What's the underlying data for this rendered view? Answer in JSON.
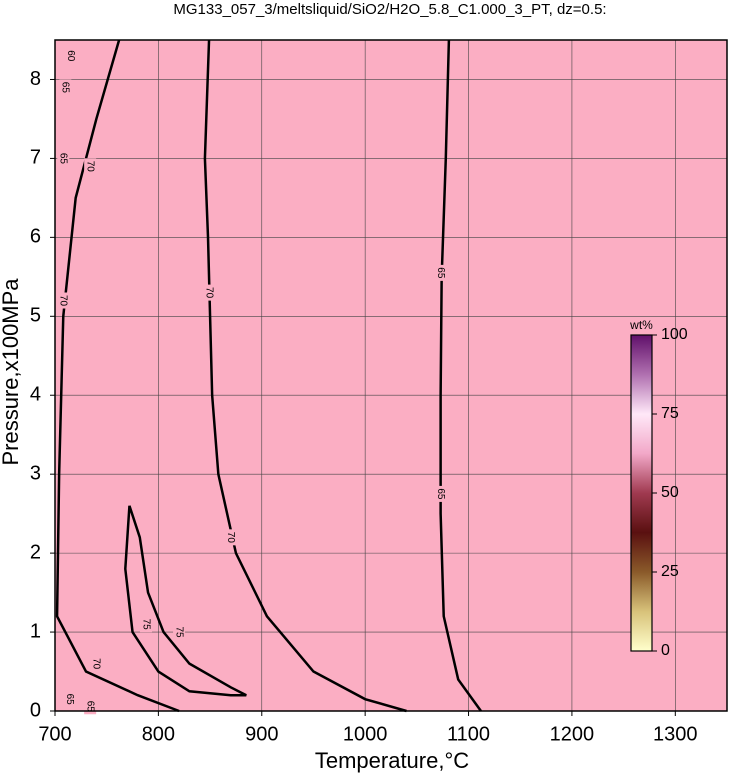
{
  "chart_data": {
    "type": "contour",
    "title": "MG133_057_3/meltsliquid/SiO2/H2O_5.8_C1.000_3_PT, dz=0.5:",
    "x_label": "Temperature,°C",
    "y_label": "Pressure,x100MPa",
    "xlim": [
      700,
      1350
    ],
    "ylim": [
      0,
      8.5
    ],
    "xticks": [
      700,
      800,
      900,
      1000,
      1100,
      1200,
      1300
    ],
    "yticks": [
      0,
      1,
      2,
      3,
      4,
      5,
      6,
      7,
      8
    ],
    "grid": true,
    "fill_color": "#fbaec3",
    "line_color": "#000000",
    "contours": [
      {
        "x": [
          820,
          780,
          730,
          702,
          704,
          708,
          720,
          740,
          762
        ],
        "y": [
          0,
          0.2,
          0.5,
          1.2,
          3,
          5,
          6.5,
          7.5,
          8.5
        ]
      },
      {
        "x": [
          772,
          768,
          775,
          800,
          830,
          870,
          885,
          870,
          830,
          805,
          790,
          782,
          772
        ],
        "y": [
          2.6,
          1.8,
          1,
          0.5,
          0.25,
          0.2,
          0.2,
          0.3,
          0.6,
          1,
          1.5,
          2.2,
          2.6
        ]
      },
      {
        "x": [
          849,
          845,
          848,
          850,
          852,
          858,
          875,
          905,
          950,
          1000,
          1040
        ],
        "y": [
          8.5,
          7,
          6,
          5,
          4,
          3,
          2,
          1.2,
          0.5,
          0.15,
          0
        ]
      },
      {
        "x": [
          1081,
          1078,
          1074,
          1073,
          1073,
          1076,
          1090,
          1112
        ],
        "y": [
          8.5,
          7,
          5.5,
          4,
          2.5,
          1.2,
          0.4,
          0
        ]
      }
    ],
    "contour_labels": [
      {
        "value": 65,
        "x": 1073,
        "y": 5.55
      },
      {
        "value": 65,
        "x": 1073,
        "y": 2.75
      },
      {
        "value": 70,
        "x": 849,
        "y": 5.3
      },
      {
        "value": 70,
        "x": 870,
        "y": 2.2
      },
      {
        "value": 70,
        "x": 708,
        "y": 5.2
      },
      {
        "value": 70,
        "x": 734,
        "y": 6.9
      },
      {
        "value": 70,
        "x": 740,
        "y": 0.6
      },
      {
        "value": 75,
        "x": 788,
        "y": 1.1
      },
      {
        "value": 75,
        "x": 820,
        "y": 1.0
      },
      {
        "value": 65,
        "x": 708,
        "y": 7.0
      },
      {
        "value": 65,
        "x": 710,
        "y": 7.9
      },
      {
        "value": 60,
        "x": 715,
        "y": 8.3
      },
      {
        "value": 65,
        "x": 714,
        "y": 0.15
      },
      {
        "value": 65,
        "x": 734,
        "y": 0.06
      }
    ],
    "colorbar": {
      "label": "wt%",
      "lim": [
        0,
        100
      ],
      "ticks": [
        0,
        25,
        50,
        75,
        100
      ],
      "colors": [
        "#ffffcc",
        "#d8c27a",
        "#8a5a2a",
        "#5a1010",
        "#a03a50",
        "#f2a8c8",
        "#ffe8f8",
        "#b070b0",
        "#60106a"
      ]
    }
  }
}
